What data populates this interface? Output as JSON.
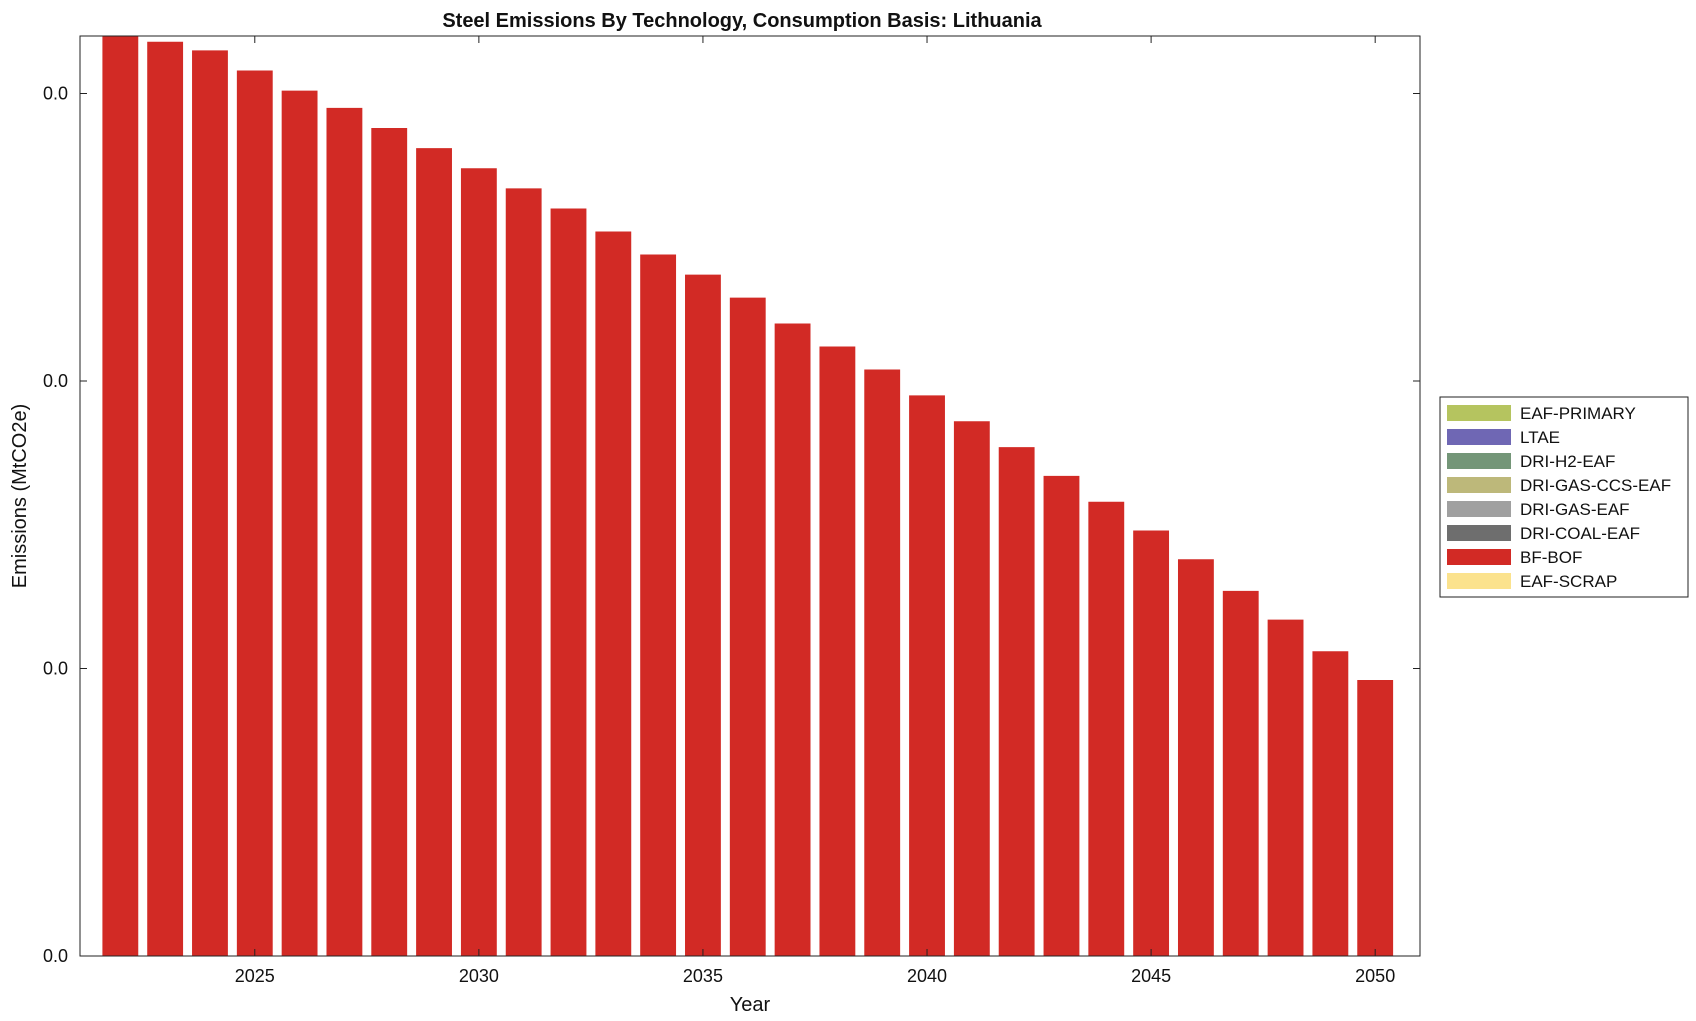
{
  "chart_data": {
    "type": "bar",
    "title": "Steel Emissions By Technology, Consumption Basis: Lithuania",
    "xlabel": "Year",
    "ylabel": "Emissions (MtCO2e)",
    "x": [
      2022,
      2023,
      2024,
      2025,
      2026,
      2027,
      2028,
      2029,
      2030,
      2031,
      2032,
      2033,
      2034,
      2035,
      2036,
      2037,
      2038,
      2039,
      2040,
      2041,
      2042,
      2043,
      2044,
      2045,
      2046,
      2047,
      2048,
      2049,
      2050
    ],
    "xticks": [
      2025,
      2030,
      2035,
      2040,
      2045,
      2050
    ],
    "xlim": [
      2021.1,
      2051.0
    ],
    "yticks_values": [
      0.0,
      0.01,
      0.02,
      0.03
    ],
    "yticks_labels": [
      "0.0",
      "0.0",
      "0.0",
      "0.0"
    ],
    "ylim": [
      0.0,
      0.032
    ],
    "stacked": true,
    "series": [
      {
        "name": "EAF-PRIMARY",
        "color": "#b5c45f",
        "values": [
          0,
          0,
          0,
          0,
          0,
          0,
          0,
          0,
          0,
          0,
          0,
          0,
          0,
          0,
          0,
          0,
          0,
          0,
          0,
          0,
          0,
          0,
          0,
          0,
          0,
          0,
          0,
          0,
          0
        ]
      },
      {
        "name": "LTAE",
        "color": "#6f67b4",
        "values": [
          0,
          0,
          0,
          0,
          0,
          0,
          0,
          0,
          0,
          0,
          0,
          0,
          0,
          0,
          0,
          0,
          0,
          0,
          0,
          0,
          0,
          0,
          0,
          0,
          0,
          0,
          0,
          0,
          0
        ]
      },
      {
        "name": "DRI-H2-EAF",
        "color": "#749678",
        "values": [
          0,
          0,
          0,
          0,
          0,
          0,
          0,
          0,
          0,
          0,
          0,
          0,
          0,
          0,
          0,
          0,
          0,
          0,
          0,
          0,
          0,
          0,
          0,
          0,
          0,
          0,
          0,
          0,
          0
        ]
      },
      {
        "name": "DRI-GAS-CCS-EAF",
        "color": "#bdb87a",
        "values": [
          0,
          0,
          0,
          0,
          0,
          0,
          0,
          0,
          0,
          0,
          0,
          0,
          0,
          0,
          0,
          0,
          0,
          0,
          0,
          0,
          0,
          0,
          0,
          0,
          0,
          0,
          0,
          0,
          0
        ]
      },
      {
        "name": "DRI-GAS-EAF",
        "color": "#a0a0a0",
        "values": [
          0,
          0,
          0,
          0,
          0,
          0,
          0,
          0,
          0,
          0,
          0,
          0,
          0,
          0,
          0,
          0,
          0,
          0,
          0,
          0,
          0,
          0,
          0,
          0,
          0,
          0,
          0,
          0,
          0
        ]
      },
      {
        "name": "DRI-COAL-EAF",
        "color": "#6e6e6e",
        "values": [
          0,
          0,
          0,
          0,
          0,
          0,
          0,
          0,
          0,
          0,
          0,
          0,
          0,
          0,
          0,
          0,
          0,
          0,
          0,
          0,
          0,
          0,
          0,
          0,
          0,
          0,
          0,
          0,
          0
        ]
      },
      {
        "name": "BF-BOF",
        "color": "#d22a25",
        "values": [
          0.032,
          0.0318,
          0.0315,
          0.0308,
          0.0301,
          0.0295,
          0.0288,
          0.0281,
          0.0274,
          0.0267,
          0.026,
          0.0252,
          0.0244,
          0.0237,
          0.0229,
          0.022,
          0.0212,
          0.0204,
          0.0195,
          0.0186,
          0.0177,
          0.0167,
          0.0158,
          0.0148,
          0.0138,
          0.0127,
          0.0117,
          0.0106,
          0.0096
        ]
      },
      {
        "name": "EAF-SCRAP",
        "color": "#fbe28d",
        "values": [
          0,
          0,
          0,
          0,
          0,
          0,
          0,
          0,
          0,
          0,
          0,
          0,
          0,
          0,
          0,
          0,
          0,
          0,
          0,
          0,
          0,
          0,
          0,
          0,
          0,
          0,
          0,
          0,
          0
        ]
      }
    ],
    "grid": false,
    "legend_position": "outside-right",
    "legend_order": [
      "EAF-PRIMARY",
      "LTAE",
      "DRI-H2-EAF",
      "DRI-GAS-CCS-EAF",
      "DRI-GAS-EAF",
      "DRI-COAL-EAF",
      "BF-BOF",
      "EAF-SCRAP"
    ]
  }
}
